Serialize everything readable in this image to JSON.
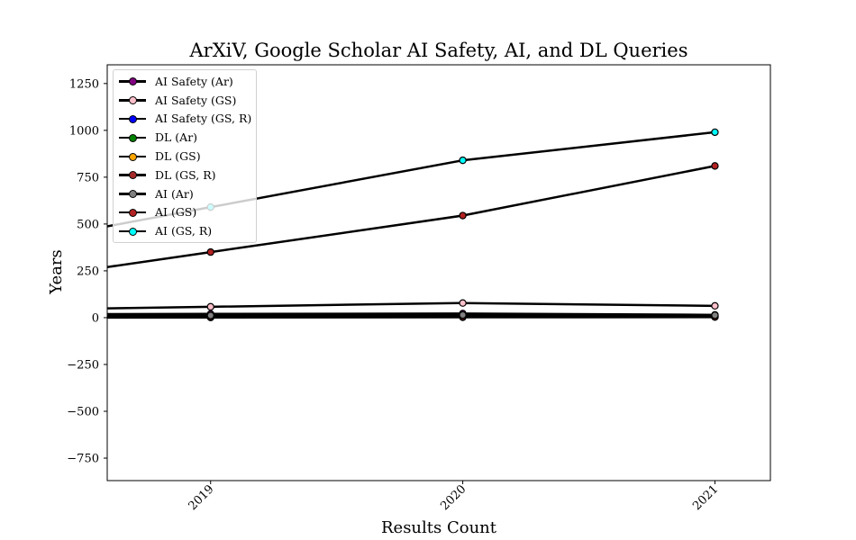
{
  "chart_data": {
    "type": "line",
    "title": "ArXiV, Google Scholar AI Safety, AI, and DL Queries",
    "xlabel": "Results Count",
    "ylabel": "Years",
    "x": [
      "2019",
      "2020",
      "2021"
    ],
    "xlim": [
      2018.59,
      2021.22
    ],
    "ylim": [
      -870,
      1350
    ],
    "yticks": [
      -750,
      -500,
      -250,
      0,
      250,
      500,
      750,
      1000,
      1250
    ],
    "yticklabels": [
      "−750",
      "−500",
      "−250",
      "0",
      "250",
      "500",
      "750",
      "1000",
      "1250"
    ],
    "grid": false,
    "legend_position": "top-left",
    "series": [
      {
        "name": "AI Safety (Ar)",
        "color": "#800080",
        "values": [
          20,
          22,
          15
        ]
      },
      {
        "name": "AI Safety (GS)",
        "color": "#ffc0cb",
        "values": [
          58,
          78,
          63
        ]
      },
      {
        "name": "AI Safety (GS, R)",
        "color": "#0000ff",
        "values": [
          1,
          2,
          3
        ]
      },
      {
        "name": "DL (Ar)",
        "color": "#008000",
        "values": [
          10,
          12,
          10
        ]
      },
      {
        "name": "DL (GS)",
        "color": "#ffa500",
        "values": [
          8,
          9,
          7
        ]
      },
      {
        "name": "DL (GS, R)",
        "color": "#a52a2a",
        "values": [
          5,
          6,
          5
        ]
      },
      {
        "name": "AI (Ar)",
        "color": "#808080",
        "values": [
          12,
          14,
          13
        ]
      },
      {
        "name": "AI (GS)",
        "color": "#b22222",
        "values": [
          350,
          545,
          810
        ]
      },
      {
        "name": "AI (GS, R)",
        "color": "#00ffff",
        "values": [
          590,
          840,
          990
        ]
      }
    ]
  }
}
